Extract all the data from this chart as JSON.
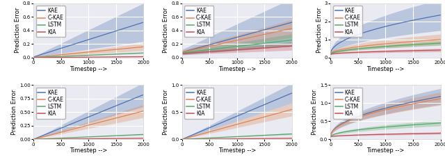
{
  "timesteps": 2000,
  "n_points": 300,
  "subplots": [
    {
      "row": 0,
      "col": 0,
      "ylim": [
        0,
        0.8
      ],
      "yticks": [
        0.0,
        0.2,
        0.4,
        0.6,
        0.8
      ],
      "lines": {
        "KAE": {
          "mean_end": 0.52,
          "std_end": 0.28,
          "mean_start": 0.01,
          "std_start": 0.005,
          "color": "#4C72B0",
          "shape": "linear"
        },
        "C-KAE": {
          "mean_end": 0.16,
          "std_end": 0.055,
          "mean_start": 0.005,
          "std_start": 0.002,
          "color": "#DD8452",
          "shape": "linear"
        },
        "LSTM": {
          "mean_end": 0.07,
          "std_end": 0.008,
          "mean_start": 0.002,
          "std_start": 0.001,
          "color": "#55A868",
          "shape": "linear"
        },
        "KIA": {
          "mean_end": 0.015,
          "std_end": 0.003,
          "mean_start": 0.001,
          "std_start": 0.0005,
          "color": "#C44E52",
          "shape": "linear"
        }
      }
    },
    {
      "row": 0,
      "col": 1,
      "ylim": [
        0.0,
        0.8
      ],
      "yticks": [
        0.0,
        0.2,
        0.4,
        0.6,
        0.8
      ],
      "lines": {
        "KAE": {
          "mean_end": 0.52,
          "std_end": 0.35,
          "mean_start": 0.08,
          "std_start": 0.04,
          "color": "#4C72B0",
          "shape": "linear"
        },
        "C-KAE": {
          "mean_end": 0.43,
          "std_end": 0.13,
          "mean_start": 0.08,
          "std_start": 0.03,
          "color": "#DD8452",
          "shape": "linear"
        },
        "LSTM": {
          "mean_end": 0.26,
          "std_end": 0.09,
          "mean_start": 0.07,
          "std_start": 0.02,
          "color": "#55A868",
          "shape": "linear"
        },
        "KIA": {
          "mean_end": 0.17,
          "std_end": 0.06,
          "mean_start": 0.06,
          "std_start": 0.015,
          "color": "#C44E52",
          "shape": "linear"
        }
      }
    },
    {
      "row": 0,
      "col": 2,
      "ylim": [
        0,
        3.0
      ],
      "yticks": [
        0,
        1,
        2,
        3
      ],
      "lines": {
        "KAE": {
          "mean_end": 2.35,
          "std_end": 0.85,
          "mean_start": 0.2,
          "std_start": 0.05,
          "color": "#4C72B0",
          "shape": "sqrt"
        },
        "C-KAE": {
          "mean_end": 1.0,
          "std_end": 0.3,
          "mean_start": 0.2,
          "std_start": 0.05,
          "color": "#DD8452",
          "shape": "sqrt"
        },
        "LSTM": {
          "mean_end": 0.8,
          "std_end": 0.12,
          "mean_start": 0.18,
          "std_start": 0.03,
          "color": "#55A868",
          "shape": "sqrt"
        },
        "KIA": {
          "mean_end": 0.42,
          "std_end": 0.09,
          "mean_start": 0.18,
          "std_start": 0.02,
          "color": "#C44E52",
          "shape": "sqrt"
        }
      }
    },
    {
      "row": 1,
      "col": 0,
      "ylim": [
        0,
        1.0
      ],
      "yticks": [
        0.0,
        0.25,
        0.5,
        0.75,
        1.0
      ],
      "lines": {
        "KAE": {
          "mean_end": 0.82,
          "std_end": 0.22,
          "mean_start": 0.0,
          "std_start": 0.0,
          "color": "#4C72B0",
          "shape": "linear"
        },
        "C-KAE": {
          "mean_end": 0.52,
          "std_end": 0.12,
          "mean_start": 0.0,
          "std_start": 0.0,
          "color": "#DD8452",
          "shape": "linear"
        },
        "LSTM": {
          "mean_end": 0.09,
          "std_end": 0.01,
          "mean_start": 0.0,
          "std_start": 0.0,
          "color": "#55A868",
          "shape": "linear"
        },
        "KIA": {
          "mean_end": 0.02,
          "std_end": 0.003,
          "mean_start": 0.0,
          "std_start": 0.0,
          "color": "#C44E52",
          "shape": "linear"
        }
      }
    },
    {
      "row": 1,
      "col": 1,
      "ylim": [
        0,
        1.0
      ],
      "yticks": [
        0.0,
        0.5,
        1.0
      ],
      "lines": {
        "KAE": {
          "mean_end": 0.85,
          "std_end": 0.18,
          "mean_start": 0.0,
          "std_start": 0.0,
          "color": "#4C72B0",
          "shape": "linear"
        },
        "C-KAE": {
          "mean_end": 0.55,
          "std_end": 0.12,
          "mean_start": 0.0,
          "std_start": 0.0,
          "color": "#DD8452",
          "shape": "linear"
        },
        "LSTM": {
          "mean_end": 0.1,
          "std_end": 0.015,
          "mean_start": 0.0,
          "std_start": 0.0,
          "color": "#55A868",
          "shape": "linear"
        },
        "KIA": {
          "mean_end": 0.02,
          "std_end": 0.004,
          "mean_start": 0.0,
          "std_start": 0.0,
          "color": "#C44E52",
          "shape": "linear"
        }
      }
    },
    {
      "row": 1,
      "col": 2,
      "ylim": [
        0.0,
        1.5
      ],
      "yticks": [
        0.0,
        0.5,
        1.0,
        1.5
      ],
      "lines": {
        "KAE": {
          "mean_end": 1.18,
          "std_end": 0.22,
          "mean_start": 0.08,
          "std_start": 0.02,
          "color": "#4C72B0",
          "shape": "sqrt"
        },
        "C-KAE": {
          "mean_end": 1.12,
          "std_end": 0.18,
          "mean_start": 0.08,
          "std_start": 0.02,
          "color": "#DD8452",
          "shape": "sqrt"
        },
        "LSTM": {
          "mean_end": 0.45,
          "std_end": 0.08,
          "mean_start": 0.07,
          "std_start": 0.01,
          "color": "#55A868",
          "shape": "sqrt"
        },
        "KIA": {
          "mean_end": 0.17,
          "std_end": 0.03,
          "mean_start": 0.07,
          "std_start": 0.01,
          "color": "#C44E52",
          "shape": "sqrt"
        }
      }
    }
  ],
  "xlabel": "Timestep -->",
  "ylabel": "Prediction Error",
  "legend_labels": [
    "KAE",
    "C-KAE",
    "LSTM",
    "KIA"
  ],
  "legend_colors": [
    "#4C72B0",
    "#DD8452",
    "#55A868",
    "#C44E52"
  ],
  "xticks": [
    0,
    500,
    1000,
    1500,
    2000
  ],
  "background_color": "#EAEAF2",
  "grid_color": "#FFFFFF",
  "fontsize_axis": 6,
  "fontsize_legend": 5.5,
  "fontsize_tick": 5
}
